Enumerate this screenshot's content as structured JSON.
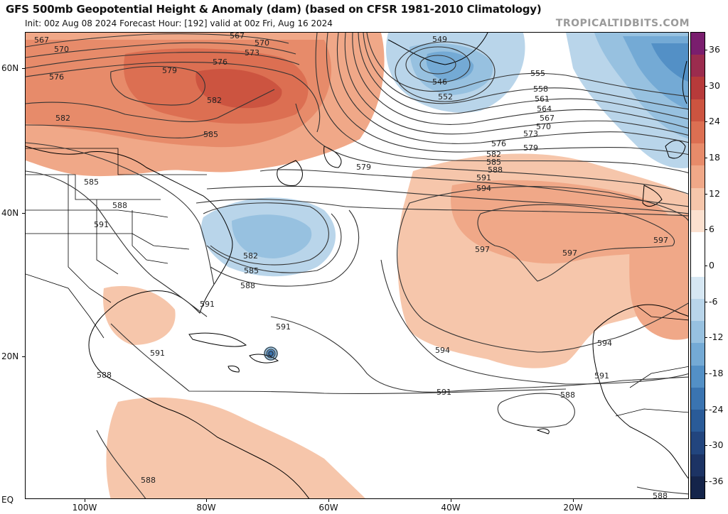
{
  "header": {
    "title": "GFS 500mb Geopotential Height & Anomaly (dam) (based on CFSR 1981-2010 Climatology)",
    "subtitle": "Init: 00z Aug 08 2024   Forecast Hour: [192]   valid at 00z Fri, Aug 16 2024",
    "watermark": "TROPICALTIDBITS.COM"
  },
  "axes": {
    "lat_labels": [
      "60N",
      "40N",
      "20N",
      "EQ"
    ],
    "lon_labels": [
      "100W",
      "80W",
      "60W",
      "40W",
      "20W"
    ]
  },
  "colorbar": {
    "labels": [
      "36",
      "30",
      "24",
      "18",
      "12",
      "6",
      "0",
      "-6",
      "-12",
      "-18",
      "-24",
      "-30",
      "-36"
    ],
    "colors": [
      "#7a1e6e",
      "#9b2c4e",
      "#b73a3a",
      "#cc5440",
      "#dc6f52",
      "#e78b6a",
      "#f0a888",
      "#f6c6ab",
      "#fbe0cf",
      "#ffffff",
      "#ffffff",
      "#d6e7f3",
      "#b9d5ea",
      "#97c1e0",
      "#74aad5",
      "#5390c6",
      "#3a74b1",
      "#2a5b98",
      "#22457e",
      "#1c3364",
      "#14244a"
    ]
  },
  "contour_labels": [
    {
      "text": "567",
      "k": "c1"
    },
    {
      "text": "570",
      "k": "c2"
    },
    {
      "text": "576",
      "k": "c3"
    },
    {
      "text": "579",
      "k": "c4"
    },
    {
      "text": "576",
      "k": "c5"
    },
    {
      "text": "573",
      "k": "c6"
    },
    {
      "text": "570",
      "k": "c7"
    },
    {
      "text": "567",
      "k": "c8"
    },
    {
      "text": "582",
      "k": "c9"
    },
    {
      "text": "582",
      "k": "c10"
    },
    {
      "text": "585",
      "k": "c11"
    },
    {
      "text": "585",
      "k": "c12"
    },
    {
      "text": "588",
      "k": "c13"
    },
    {
      "text": "591",
      "k": "c14"
    },
    {
      "text": "579",
      "k": "c15"
    },
    {
      "text": "582",
      "k": "c16"
    },
    {
      "text": "585",
      "k": "c17"
    },
    {
      "text": "588",
      "k": "c18"
    },
    {
      "text": "549",
      "k": "c19"
    },
    {
      "text": "546",
      "k": "c20"
    },
    {
      "text": "552",
      "k": "c21"
    },
    {
      "text": "555",
      "k": "c22"
    },
    {
      "text": "558",
      "k": "c23"
    },
    {
      "text": "561",
      "k": "c24"
    },
    {
      "text": "564",
      "k": "c25"
    },
    {
      "text": "567",
      "k": "c26"
    },
    {
      "text": "570",
      "k": "c27"
    },
    {
      "text": "573",
      "k": "c28"
    },
    {
      "text": "576",
      "k": "c29"
    },
    {
      "text": "579",
      "k": "c30"
    },
    {
      "text": "582",
      "k": "c31"
    },
    {
      "text": "585",
      "k": "c32"
    },
    {
      "text": "588",
      "k": "c33"
    },
    {
      "text": "591",
      "k": "c34"
    },
    {
      "text": "594",
      "k": "c35"
    },
    {
      "text": "597",
      "k": "c36"
    },
    {
      "text": "597",
      "k": "c37"
    },
    {
      "text": "597",
      "k": "c38"
    },
    {
      "text": "591",
      "k": "c39"
    },
    {
      "text": "591",
      "k": "c40"
    },
    {
      "text": "591",
      "k": "c41"
    },
    {
      "text": "594",
      "k": "c42"
    },
    {
      "text": "591",
      "k": "c43"
    },
    {
      "text": "594",
      "k": "c44"
    },
    {
      "text": "591",
      "k": "c45"
    },
    {
      "text": "588",
      "k": "c46"
    },
    {
      "text": "588",
      "k": "c47"
    },
    {
      "text": "588",
      "k": "c48"
    },
    {
      "text": "588",
      "k": "c49"
    }
  ]
}
